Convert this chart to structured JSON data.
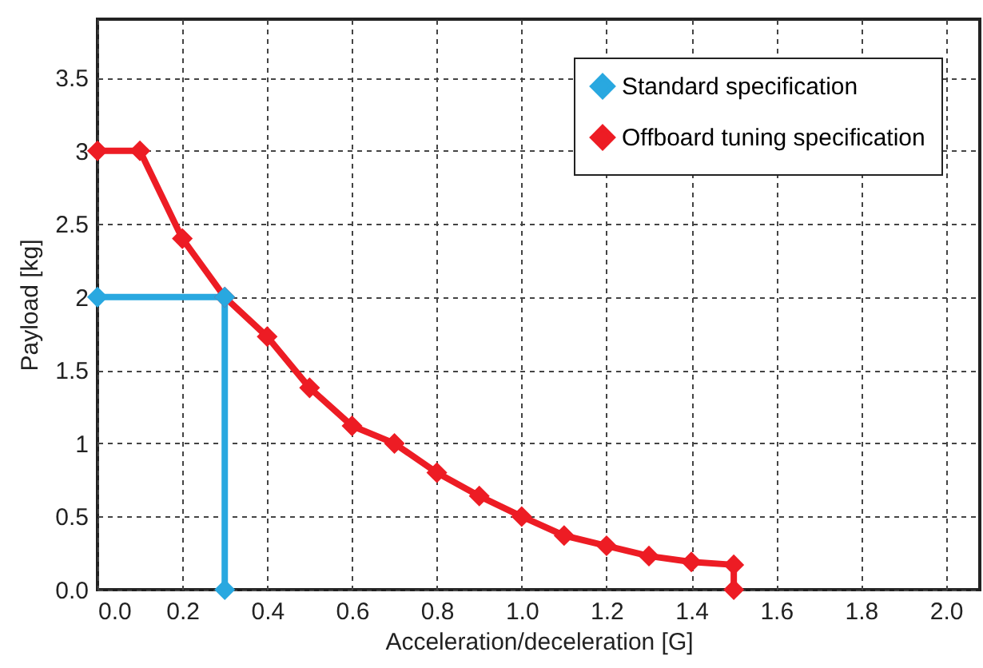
{
  "chart_data": {
    "type": "line",
    "xlabel": "Acceleration/deceleration [G]",
    "ylabel": "Payload [kg]",
    "xlim": [
      0,
      2.08
    ],
    "ylim": [
      0,
      3.9
    ],
    "xticks": [
      {
        "value": 0,
        "label": "0.0"
      },
      {
        "value": 0.2,
        "label": "0.2"
      },
      {
        "value": 0.4,
        "label": "0.4"
      },
      {
        "value": 0.6,
        "label": "0.6"
      },
      {
        "value": 0.8,
        "label": "0.8"
      },
      {
        "value": 1,
        "label": "1.0"
      },
      {
        "value": 1.2,
        "label": "1.2"
      },
      {
        "value": 1.4,
        "label": "1.4"
      },
      {
        "value": 1.6,
        "label": "1.6"
      },
      {
        "value": 1.8,
        "label": "1.8"
      },
      {
        "value": 2,
        "label": "2.0"
      }
    ],
    "yticks": [
      {
        "value": 0,
        "label": "0.0"
      },
      0.5,
      1,
      1.5,
      2,
      2.5,
      3,
      3.5
    ],
    "grid": true,
    "legend": "top right",
    "marker": "diamond",
    "line_style": "solid",
    "series": [
      {
        "name": "Standard specification",
        "color": "#29a8e0",
        "x": [
          0,
          0.3,
          0.3
        ],
        "values": [
          2,
          2,
          0
        ]
      },
      {
        "name": "Offboard tuning specification",
        "color": "#ed1c24",
        "x": [
          0,
          0.1,
          0.2,
          0.3,
          0.4,
          0.5,
          0.6,
          0.7,
          0.8,
          0.9,
          1.0,
          1.1,
          1.2,
          1.3,
          1.4,
          1.5,
          1.5
        ],
        "values": [
          3,
          3,
          2.4,
          2,
          1.73,
          1.38,
          1.12,
          1,
          0.8,
          0.64,
          0.5,
          0.37,
          0.3,
          0.23,
          0.19,
          0.17,
          0
        ]
      }
    ]
  }
}
